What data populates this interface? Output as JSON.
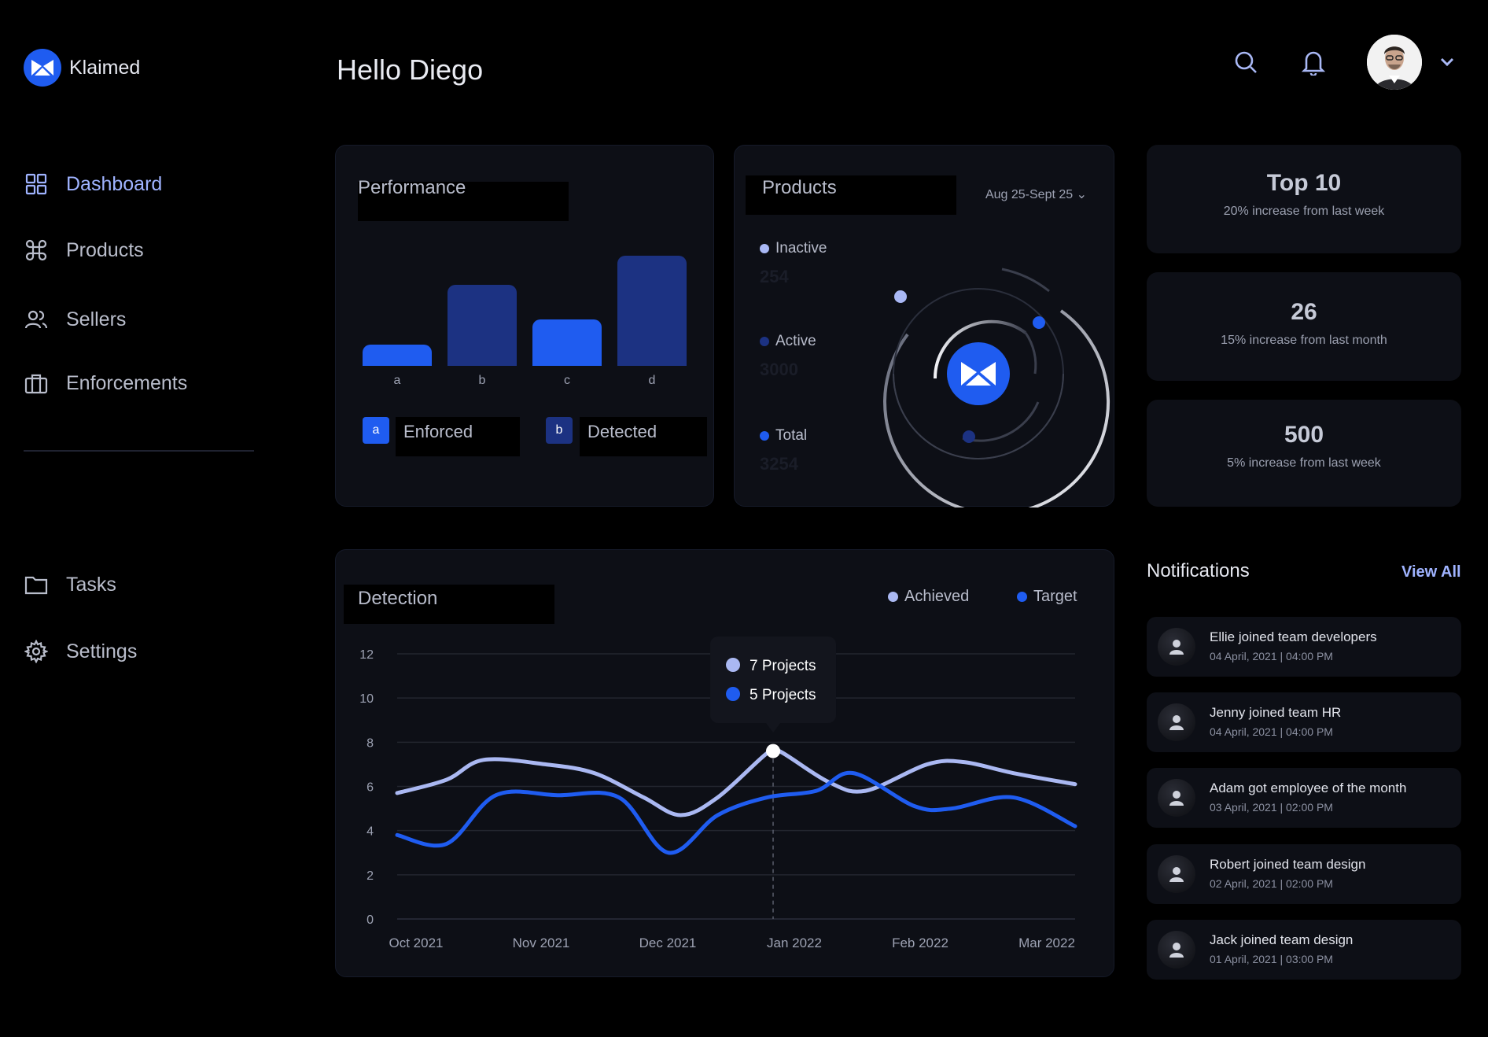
{
  "brand": {
    "name": "Klaimed"
  },
  "sidebar": {
    "items": [
      {
        "label": "Dashboard",
        "icon": "grid-icon"
      },
      {
        "label": "Products",
        "icon": "command-icon"
      },
      {
        "label": "Sellers",
        "icon": "users-icon"
      },
      {
        "label": "Enforcements",
        "icon": "briefcase-icon"
      },
      {
        "label": "Tasks",
        "icon": "folder-icon"
      },
      {
        "label": "Settings",
        "icon": "gear-icon"
      }
    ]
  },
  "header": {
    "greeting": "Hello Diego"
  },
  "performance": {
    "title": "Performance",
    "legend": [
      {
        "badge": "a",
        "label": "Enforced",
        "color": "#1f5cf0"
      },
      {
        "badge": "b",
        "label": "Detected",
        "color": "#1c3282"
      }
    ],
    "chart_data": {
      "type": "bar",
      "categories": [
        "a",
        "b",
        "c",
        "d"
      ],
      "values": [
        2,
        7.5,
        4.3,
        10.2
      ],
      "colors": [
        "#1f5cf0",
        "#1c3282",
        "#1f5cf0",
        "#1c3282"
      ],
      "title": "Performance",
      "ylim": [
        0,
        10.2
      ]
    }
  },
  "products": {
    "title": "Products",
    "date_range": "Aug 25-Sept 25 ⌄",
    "stats": [
      {
        "label": "Inactive",
        "value": "254",
        "color": "#a9b8f5"
      },
      {
        "label": "Active",
        "value": "3000",
        "color": "#1c3282"
      },
      {
        "label": "Total",
        "value": "3254",
        "color": "#1f5cf0"
      }
    ]
  },
  "stat_cards": [
    {
      "value": "Top 10",
      "sub": "20% increase from last week"
    },
    {
      "value": "26",
      "sub": "15% increase from last month"
    },
    {
      "value": "500",
      "sub": "5% increase from last week"
    }
  ],
  "detection": {
    "title": "Detection",
    "legend": [
      {
        "label": "Achieved",
        "color": "#aab8f2"
      },
      {
        "label": "Target",
        "color": "#1f5cf0"
      }
    ],
    "tooltip": [
      "7 Projects",
      "5 Projects"
    ],
    "chart_data": {
      "type": "line",
      "title": "Detection",
      "x_labels": [
        "Oct 2021",
        "Nov 2021",
        "Dec 2021",
        "Jan 2022",
        "Feb 2022",
        "Mar 2022"
      ],
      "y_ticks": [
        12,
        10,
        8,
        6,
        4,
        2,
        0
      ],
      "ylim": [
        0,
        12
      ],
      "xlim": [
        0,
        5.5
      ],
      "series": [
        {
          "name": "Achieved",
          "color": "#aab8f2",
          "points": [
            [
              0,
              5.7
            ],
            [
              0.4,
              6.3
            ],
            [
              0.7,
              7.2
            ],
            [
              1.2,
              7.0
            ],
            [
              1.6,
              6.6
            ],
            [
              2.0,
              5.5
            ],
            [
              2.3,
              4.7
            ],
            [
              2.6,
              5.5
            ],
            [
              3.0,
              7.5
            ],
            [
              3.1,
              7.6
            ],
            [
              3.5,
              6.2
            ],
            [
              3.8,
              5.8
            ],
            [
              4.3,
              7.0
            ],
            [
              4.6,
              7.1
            ],
            [
              5.0,
              6.6
            ],
            [
              5.5,
              6.1
            ]
          ]
        },
        {
          "name": "Target",
          "color": "#1f5cf0",
          "points": [
            [
              0,
              3.8
            ],
            [
              0.4,
              3.4
            ],
            [
              0.8,
              5.6
            ],
            [
              1.3,
              5.6
            ],
            [
              1.8,
              5.5
            ],
            [
              2.2,
              3.0
            ],
            [
              2.6,
              4.7
            ],
            [
              3.0,
              5.5
            ],
            [
              3.4,
              5.8
            ],
            [
              3.7,
              6.6
            ],
            [
              4.2,
              5.1
            ],
            [
              4.5,
              5.0
            ],
            [
              5.0,
              5.5
            ],
            [
              5.5,
              4.2
            ]
          ]
        }
      ],
      "highlight_x": 3.05
    }
  },
  "notifications": {
    "title": "Notifications",
    "view_all": "View All",
    "items": [
      {
        "text": "Ellie joined team developers",
        "time": "04 April, 2021 | 04:00 PM"
      },
      {
        "text": "Jenny joined team HR",
        "time": "04 April, 2021 | 04:00 PM"
      },
      {
        "text": "Adam got employee of the month",
        "time": "03 April, 2021 | 02:00 PM"
      },
      {
        "text": "Robert joined team design",
        "time": "02 April, 2021 | 02:00 PM"
      },
      {
        "text": "Jack joined team design",
        "time": "01 April, 2021 | 03:00 PM"
      }
    ]
  }
}
